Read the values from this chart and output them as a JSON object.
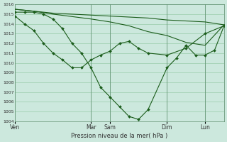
{
  "background_color": "#cce8dd",
  "grid_color": "#99ccaa",
  "line_color": "#1a5c1a",
  "marker_color": "#1a5c1a",
  "ylabel_min": 1004,
  "ylabel_max": 1016,
  "x_ticks_pos": [
    0,
    96,
    120,
    192,
    240
  ],
  "x_tick_labels": [
    "Ven",
    "Mar",
    "Sam",
    "Dim",
    "Lun"
  ],
  "xlabel": "Pression niveau de la mer( hPa )",
  "xlim": [
    0,
    264
  ],
  "vlines": [
    96,
    120,
    192,
    240
  ],
  "series": [
    {
      "x": [
        0,
        24,
        48,
        96,
        120,
        144,
        168,
        192,
        216,
        240,
        264
      ],
      "y": [
        1015.5,
        1015.3,
        1015.1,
        1014.9,
        1014.8,
        1014.7,
        1014.6,
        1014.4,
        1014.3,
        1014.2,
        1013.9
      ],
      "markers": false
    },
    {
      "x": [
        0,
        24,
        48,
        96,
        120,
        144,
        168,
        192,
        216,
        240,
        264
      ],
      "y": [
        1015.5,
        1015.3,
        1015.0,
        1014.5,
        1014.2,
        1013.8,
        1013.2,
        1012.8,
        1012.1,
        1011.8,
        1013.9
      ],
      "markers": false
    },
    {
      "x": [
        0,
        12,
        24,
        36,
        48,
        60,
        72,
        84,
        96,
        108,
        120,
        132,
        144,
        156,
        168,
        192,
        216,
        240,
        264
      ],
      "y": [
        1014.8,
        1014.0,
        1013.3,
        1012.0,
        1011.0,
        1010.3,
        1009.5,
        1009.5,
        1010.3,
        1010.8,
        1011.2,
        1012.0,
        1012.2,
        1011.5,
        1011.0,
        1010.8,
        1011.5,
        1013.0,
        1013.8
      ],
      "markers": true
    },
    {
      "x": [
        0,
        12,
        24,
        36,
        48,
        60,
        72,
        84,
        96,
        108,
        120,
        132,
        144,
        156,
        168,
        192,
        204,
        216,
        228,
        240,
        252,
        264
      ],
      "y": [
        1015.2,
        1015.2,
        1015.2,
        1015.0,
        1014.5,
        1013.5,
        1012.0,
        1011.0,
        1009.5,
        1007.5,
        1006.5,
        1005.5,
        1004.5,
        1004.2,
        1005.2,
        1009.5,
        1010.5,
        1011.8,
        1010.8,
        1010.8,
        1011.3,
        1013.8
      ],
      "markers": true
    }
  ]
}
